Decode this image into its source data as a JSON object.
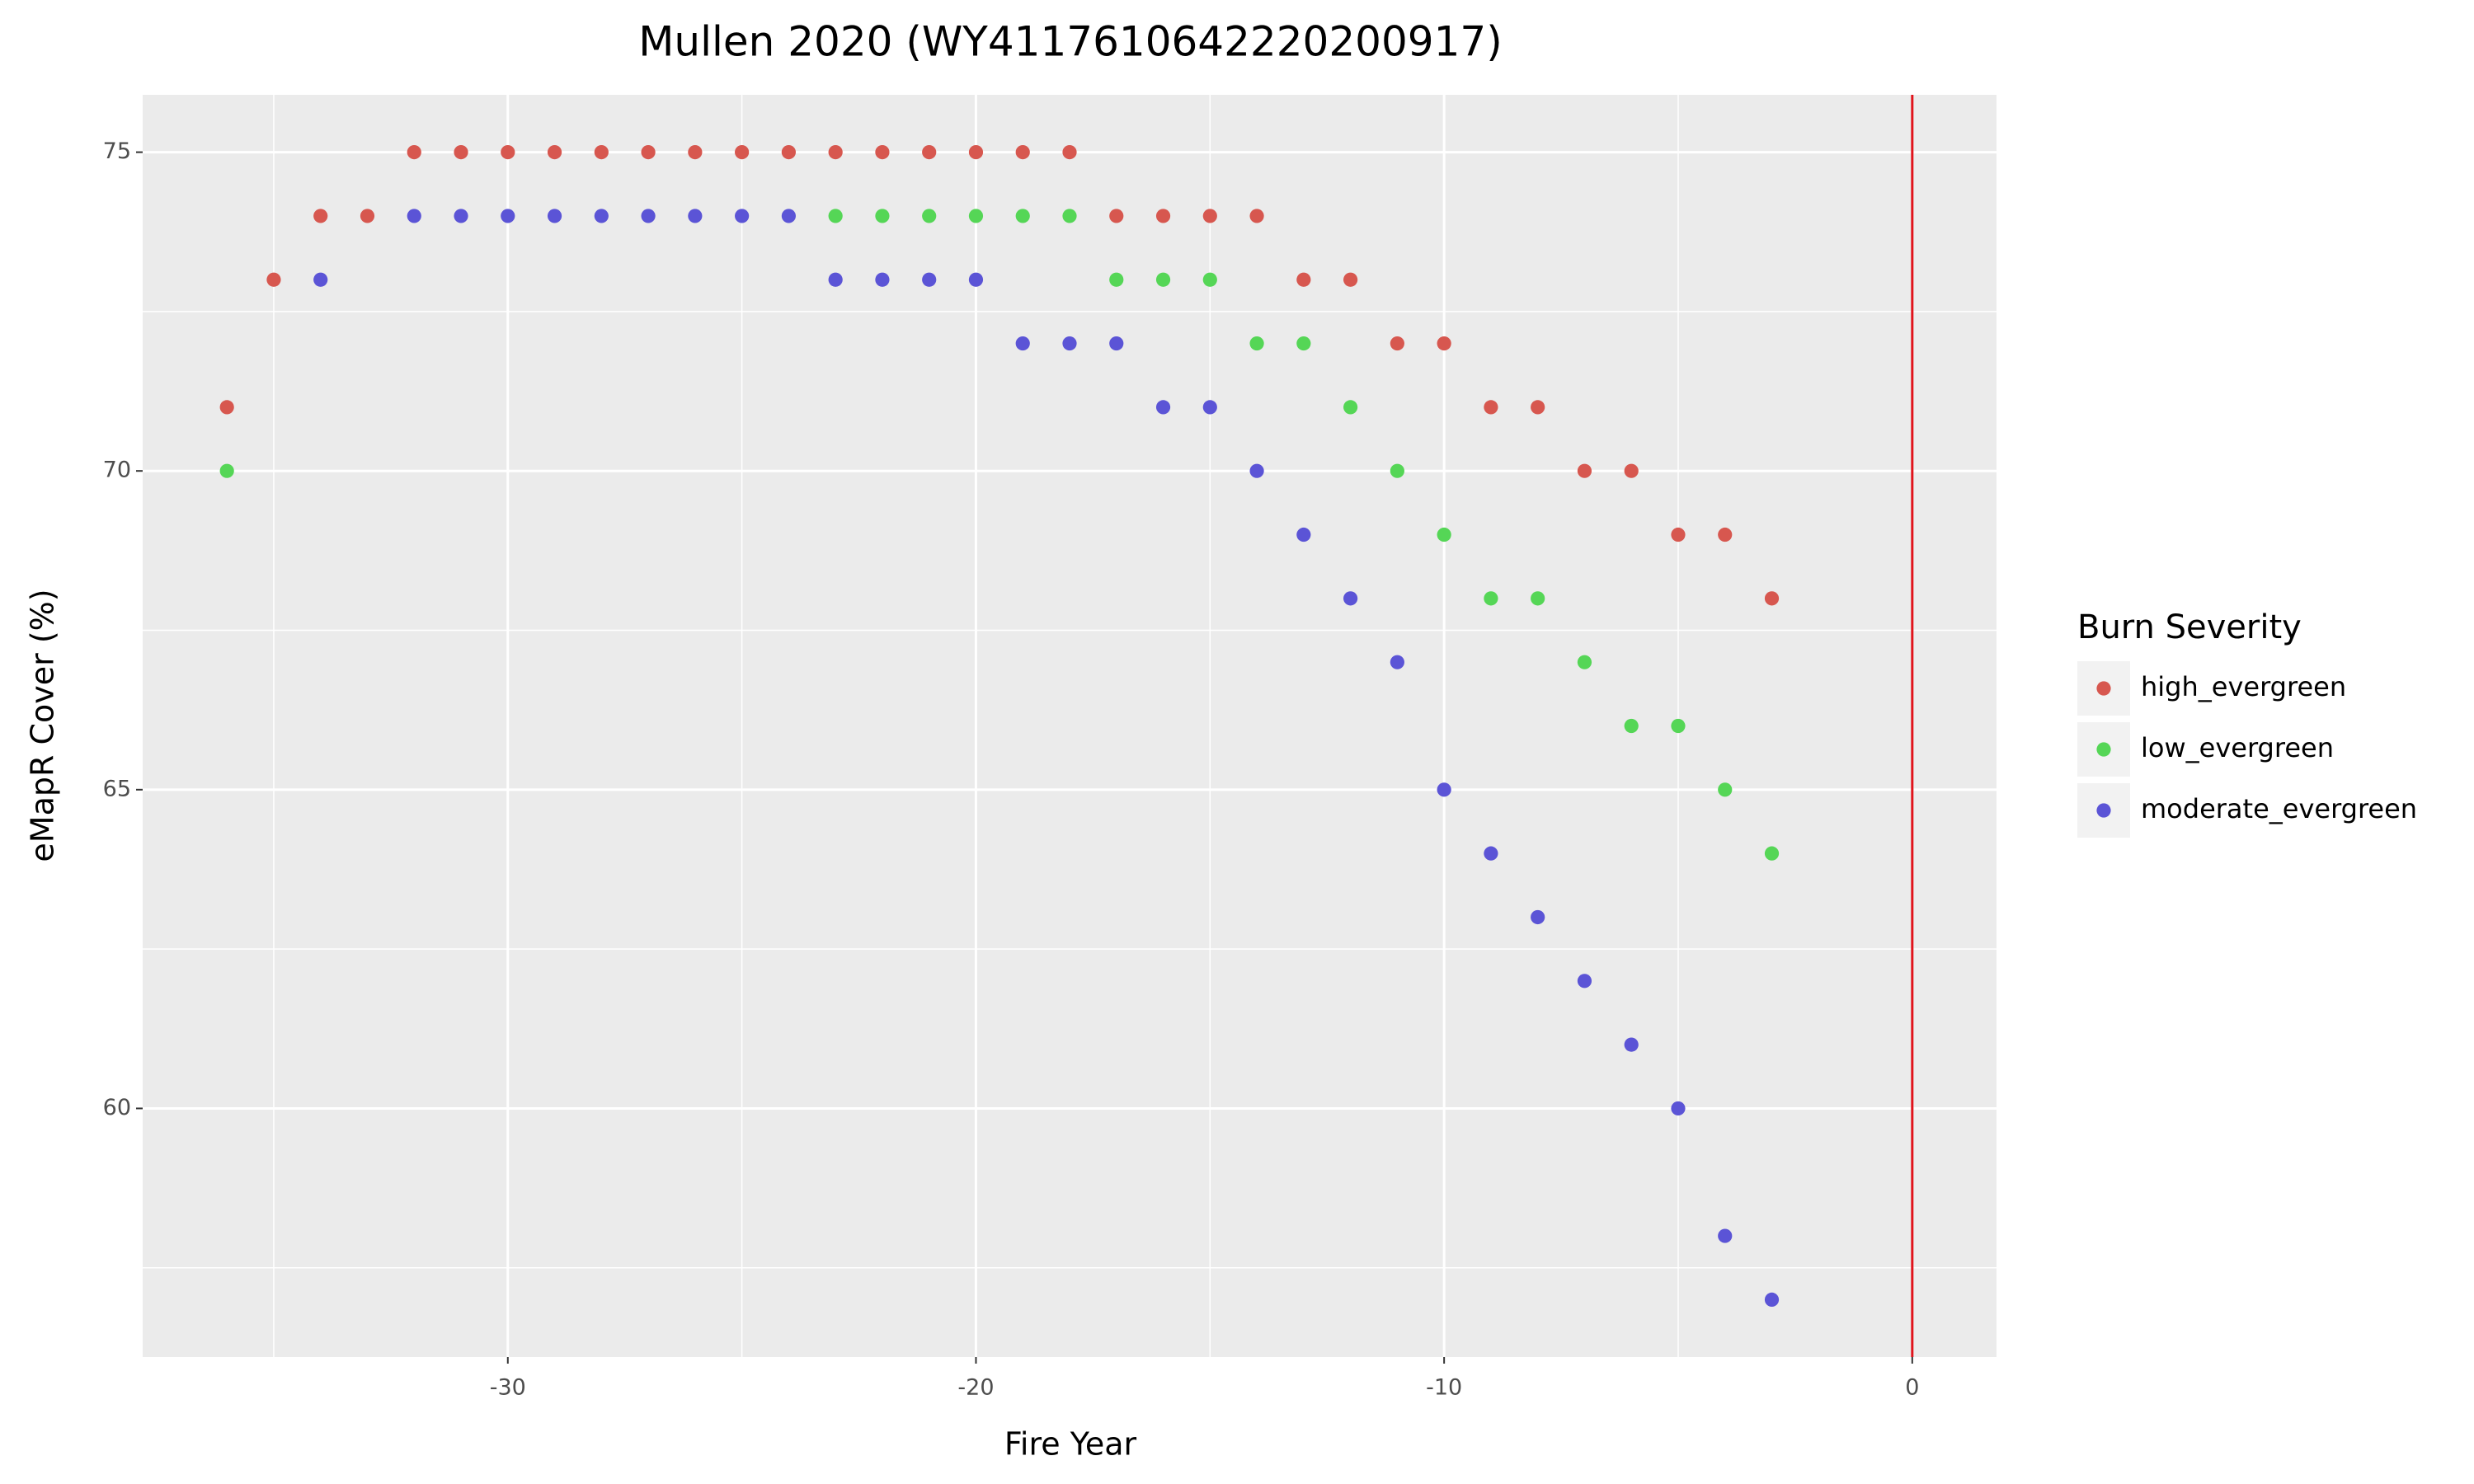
{
  "chart_data": {
    "type": "scatter",
    "title": "Mullen 2020 (WY4117610642220200917)",
    "x_label": "Fire Year",
    "y_label": "eMapR Cover (%)",
    "legend_title": "Burn Severity",
    "x": [
      -36,
      -35,
      -34,
      -33,
      -32,
      -31,
      -30,
      -29,
      -28,
      -27,
      -26,
      -25,
      -24,
      -23,
      -22,
      -21,
      -20,
      -19,
      -18,
      -17,
      -16,
      -15,
      -14,
      -13,
      -12,
      -11,
      -10,
      -9,
      -8,
      -7,
      -6,
      -5,
      -4,
      -3
    ],
    "series": [
      {
        "name": "high_evergreen",
        "color": "#d7574f",
        "values": [
          71,
          73,
          74,
          74,
          75,
          75,
          75,
          75,
          75,
          75,
          75,
          75,
          75,
          75,
          75,
          75,
          75,
          75,
          75,
          74,
          74,
          74,
          74,
          73,
          73,
          72,
          72,
          71,
          71,
          70,
          70,
          69,
          69,
          68
        ]
      },
      {
        "name": "low_evergreen",
        "color": "#55d656",
        "values": [
          70,
          null,
          null,
          null,
          null,
          null,
          null,
          null,
          null,
          null,
          null,
          null,
          null,
          74,
          74,
          74,
          74,
          74,
          74,
          73,
          73,
          73,
          72,
          72,
          71,
          70,
          69,
          68,
          68,
          67,
          66,
          66,
          65,
          64
        ]
      },
      {
        "name": "moderate_evergreen",
        "color": "#5b54d6",
        "values": [
          null,
          null,
          73,
          null,
          74,
          74,
          74,
          74,
          74,
          74,
          74,
          74,
          74,
          73,
          73,
          73,
          73,
          72,
          72,
          72,
          71,
          71,
          70,
          69,
          68,
          67,
          65,
          64,
          63,
          62,
          61,
          60,
          58,
          57
        ]
      }
    ],
    "xlim": [
      -37.8,
      1.8
    ],
    "ylim": [
      56.1,
      75.9
    ],
    "xticks": [
      -30,
      -20,
      -10,
      0
    ],
    "yticks": [
      60,
      65,
      70,
      75
    ],
    "x_minor_grid": [
      -35,
      -25,
      -15,
      -5
    ],
    "y_minor_grid": [
      57.5,
      62.5,
      67.5,
      72.5
    ],
    "vline": 0,
    "vline_color": "#e0141c",
    "grid": true,
    "legend": "right"
  }
}
